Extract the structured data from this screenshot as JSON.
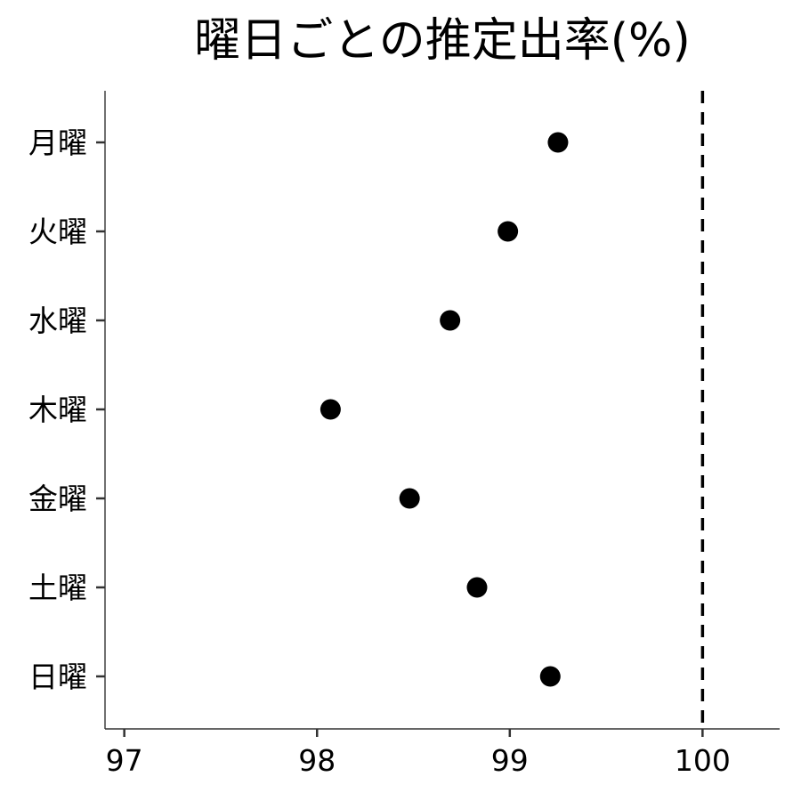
{
  "chart_data": {
    "type": "scatter",
    "title": "曜日ごとの推定出率(%)",
    "xlabel": "",
    "ylabel": "",
    "xlim": [
      96.9,
      100.4
    ],
    "x_ticks": [
      97,
      98,
      99,
      100
    ],
    "x_tick_labels": [
      "97",
      "98",
      "99",
      "100"
    ],
    "categories": [
      "月曜",
      "火曜",
      "水曜",
      "木曜",
      "金曜",
      "土曜",
      "日曜"
    ],
    "values": [
      99.25,
      98.99,
      98.69,
      98.07,
      98.48,
      98.83,
      99.21
    ],
    "reference_line": {
      "x": 100,
      "style": "dashed"
    },
    "grid": false,
    "legend": "none",
    "colors": {
      "point": "#000000",
      "axis": "#333333",
      "reference": "#000000"
    }
  }
}
